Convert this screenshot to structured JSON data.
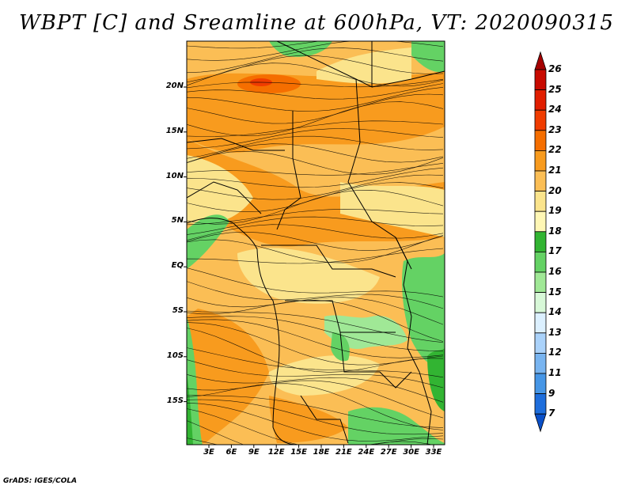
{
  "title": "WBPT [C] and Sreamline at 600hPa, VT: 2020090315",
  "footer": "GrADS: IGES/COLA",
  "map": {
    "lat_ticks": [
      "20N",
      "15N",
      "10N",
      "5N",
      "EQ",
      "5S",
      "10S",
      "15S"
    ],
    "lon_ticks": [
      "3E",
      "6E",
      "9E",
      "12E",
      "15E",
      "18E",
      "21E",
      "24E",
      "27E",
      "30E",
      "33E"
    ]
  },
  "colorbar": {
    "labels": [
      "26",
      "25",
      "24",
      "23",
      "22",
      "21",
      "20",
      "19",
      "18",
      "17",
      "16",
      "15",
      "14",
      "13",
      "12",
      "11",
      "9",
      "7"
    ],
    "colors": [
      "#a50000",
      "#c80a00",
      "#e11e00",
      "#f03c00",
      "#f56e00",
      "#f89b1e",
      "#fbbe55",
      "#fbe48c",
      "#fff7b5",
      "#32b432",
      "#64d264",
      "#a0e896",
      "#d8f8d8",
      "#dcf0ff",
      "#aad2fa",
      "#78b4f0",
      "#4696e6",
      "#1e6edc",
      "#0a50c8"
    ]
  }
}
